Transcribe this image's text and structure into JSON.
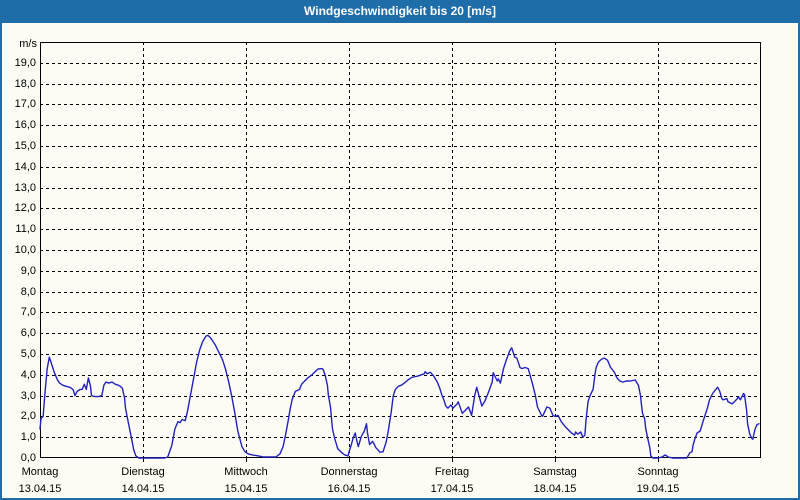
{
  "window": {
    "title": "Windgeschwindigkeit bis 20 [m/s]"
  },
  "colors": {
    "titlebar": "#1f6da8",
    "frame_border": "#1f6da8",
    "background": "#fcfcf4",
    "plot_border": "#000000",
    "grid": "#000000",
    "line": "#2121bd",
    "title_text": "#ffffff",
    "label_text": "#000000"
  },
  "chart_data": {
    "type": "line",
    "title": "Windgeschwindigkeit bis 20 [m/s]",
    "unit_label": "m/s",
    "ylim": [
      0,
      20
    ],
    "y_tick_step": 1,
    "y_tick_labels": [
      "0,0",
      "1,0",
      "2,0",
      "3,0",
      "4,0",
      "5,0",
      "6,0",
      "7,0",
      "8,0",
      "9,0",
      "10,0",
      "11,0",
      "12,0",
      "13,0",
      "14,0",
      "15,0",
      "16,0",
      "17,0",
      "18,0",
      "19,0"
    ],
    "grid": "dashed",
    "legend": "none",
    "x_axis_days": [
      {
        "name": "Montag",
        "date": "13.04.15"
      },
      {
        "name": "Dienstag",
        "date": "14.04.15"
      },
      {
        "name": "Mittwoch",
        "date": "15.04.15"
      },
      {
        "name": "Donnerstag",
        "date": "16.04.15"
      },
      {
        "name": "Freitag",
        "date": "17.04.15"
      },
      {
        "name": "Samstag",
        "date": "18.04.15"
      },
      {
        "name": "Sonntag",
        "date": "19.04.15"
      }
    ],
    "series": [
      {
        "name": "Windgeschwindigkeit",
        "color": "#2121bd",
        "x_unit": "days_since_monday_00h",
        "y_unit": "m/s",
        "points": [
          [
            0.0,
            1.4
          ],
          [
            0.01,
            1.9
          ],
          [
            0.03,
            2.0
          ],
          [
            0.05,
            3.2
          ],
          [
            0.07,
            4.3
          ],
          [
            0.09,
            4.85
          ],
          [
            0.12,
            4.4
          ],
          [
            0.14,
            4.1
          ],
          [
            0.17,
            3.75
          ],
          [
            0.19,
            3.6
          ],
          [
            0.22,
            3.5
          ],
          [
            0.25,
            3.45
          ],
          [
            0.29,
            3.4
          ],
          [
            0.32,
            3.3
          ],
          [
            0.34,
            3.0
          ],
          [
            0.36,
            3.2
          ],
          [
            0.39,
            3.3
          ],
          [
            0.41,
            3.3
          ],
          [
            0.43,
            3.55
          ],
          [
            0.45,
            3.3
          ],
          [
            0.47,
            3.85
          ],
          [
            0.49,
            3.45
          ],
          [
            0.5,
            3.0
          ],
          [
            0.53,
            2.95
          ],
          [
            0.57,
            2.95
          ],
          [
            0.6,
            3.0
          ],
          [
            0.62,
            3.5
          ],
          [
            0.64,
            3.65
          ],
          [
            0.67,
            3.6
          ],
          [
            0.7,
            3.65
          ],
          [
            0.73,
            3.55
          ],
          [
            0.76,
            3.5
          ],
          [
            0.78,
            3.45
          ],
          [
            0.8,
            3.35
          ],
          [
            0.82,
            2.9
          ],
          [
            0.83,
            2.4
          ],
          [
            0.85,
            1.9
          ],
          [
            0.87,
            1.4
          ],
          [
            0.89,
            0.9
          ],
          [
            0.91,
            0.4
          ],
          [
            0.93,
            0.1
          ],
          [
            0.96,
            0.0
          ],
          [
            1.0,
            0.0
          ],
          [
            1.12,
            0.0
          ],
          [
            1.21,
            0.0
          ],
          [
            1.24,
            0.05
          ],
          [
            1.28,
            0.6
          ],
          [
            1.31,
            1.4
          ],
          [
            1.34,
            1.75
          ],
          [
            1.36,
            1.7
          ],
          [
            1.38,
            1.85
          ],
          [
            1.41,
            1.8
          ],
          [
            1.43,
            2.2
          ],
          [
            1.46,
            3.0
          ],
          [
            1.49,
            3.8
          ],
          [
            1.52,
            4.6
          ],
          [
            1.55,
            5.2
          ],
          [
            1.58,
            5.6
          ],
          [
            1.61,
            5.85
          ],
          [
            1.63,
            5.9
          ],
          [
            1.66,
            5.75
          ],
          [
            1.68,
            5.6
          ],
          [
            1.7,
            5.45
          ],
          [
            1.73,
            5.15
          ],
          [
            1.77,
            4.75
          ],
          [
            1.8,
            4.3
          ],
          [
            1.83,
            3.7
          ],
          [
            1.86,
            3.0
          ],
          [
            1.89,
            2.2
          ],
          [
            1.92,
            1.3
          ],
          [
            1.96,
            0.55
          ],
          [
            1.99,
            0.3
          ],
          [
            2.02,
            0.2
          ],
          [
            2.06,
            0.15
          ],
          [
            2.12,
            0.1
          ],
          [
            2.17,
            0.05
          ],
          [
            2.23,
            0.05
          ],
          [
            2.29,
            0.05
          ],
          [
            2.33,
            0.2
          ],
          [
            2.36,
            0.55
          ],
          [
            2.38,
            1.0
          ],
          [
            2.41,
            1.8
          ],
          [
            2.43,
            2.4
          ],
          [
            2.45,
            2.85
          ],
          [
            2.48,
            3.2
          ],
          [
            2.5,
            3.25
          ],
          [
            2.52,
            3.3
          ],
          [
            2.54,
            3.55
          ],
          [
            2.57,
            3.7
          ],
          [
            2.6,
            3.85
          ],
          [
            2.64,
            4.0
          ],
          [
            2.67,
            4.15
          ],
          [
            2.7,
            4.28
          ],
          [
            2.74,
            4.3
          ],
          [
            2.75,
            4.25
          ],
          [
            2.77,
            3.95
          ],
          [
            2.79,
            3.5
          ],
          [
            2.8,
            3.0
          ],
          [
            2.82,
            2.45
          ],
          [
            2.83,
            1.9
          ],
          [
            2.84,
            1.4
          ],
          [
            2.86,
            0.95
          ],
          [
            2.89,
            0.45
          ],
          [
            2.93,
            0.25
          ],
          [
            2.96,
            0.15
          ],
          [
            2.99,
            0.1
          ],
          [
            3.0,
            0.3
          ],
          [
            3.02,
            0.6
          ],
          [
            3.04,
            0.95
          ],
          [
            3.06,
            1.2
          ],
          [
            3.08,
            0.75
          ],
          [
            3.09,
            0.55
          ],
          [
            3.12,
            1.05
          ],
          [
            3.15,
            1.3
          ],
          [
            3.17,
            1.65
          ],
          [
            3.18,
            1.2
          ],
          [
            3.2,
            0.65
          ],
          [
            3.23,
            0.8
          ],
          [
            3.26,
            0.5
          ],
          [
            3.28,
            0.4
          ],
          [
            3.3,
            0.28
          ],
          [
            3.33,
            0.3
          ],
          [
            3.36,
            0.75
          ],
          [
            3.38,
            1.25
          ],
          [
            3.41,
            2.2
          ],
          [
            3.43,
            3.0
          ],
          [
            3.45,
            3.3
          ],
          [
            3.47,
            3.4
          ],
          [
            3.48,
            3.45
          ],
          [
            3.51,
            3.5
          ],
          [
            3.55,
            3.65
          ],
          [
            3.58,
            3.78
          ],
          [
            3.61,
            3.88
          ],
          [
            3.65,
            3.92
          ],
          [
            3.68,
            3.95
          ],
          [
            3.7,
            4.0
          ],
          [
            3.73,
            4.05
          ],
          [
            3.74,
            4.15
          ],
          [
            3.76,
            4.05
          ],
          [
            3.79,
            4.12
          ],
          [
            3.82,
            3.95
          ],
          [
            3.84,
            3.8
          ],
          [
            3.86,
            3.62
          ],
          [
            3.88,
            3.38
          ],
          [
            3.9,
            3.05
          ],
          [
            3.92,
            2.8
          ],
          [
            3.94,
            2.5
          ],
          [
            3.96,
            2.4
          ],
          [
            3.99,
            2.55
          ],
          [
            4.01,
            2.4
          ],
          [
            4.05,
            2.6
          ],
          [
            4.06,
            2.7
          ],
          [
            4.1,
            2.15
          ],
          [
            4.13,
            2.3
          ],
          [
            4.16,
            2.45
          ],
          [
            4.19,
            2.05
          ],
          [
            4.22,
            3.0
          ],
          [
            4.24,
            3.4
          ],
          [
            4.27,
            2.85
          ],
          [
            4.29,
            2.5
          ],
          [
            4.32,
            2.75
          ],
          [
            4.35,
            3.1
          ],
          [
            4.39,
            3.65
          ],
          [
            4.4,
            4.1
          ],
          [
            4.44,
            3.7
          ],
          [
            4.45,
            3.8
          ],
          [
            4.47,
            3.6
          ],
          [
            4.5,
            4.3
          ],
          [
            4.53,
            4.75
          ],
          [
            4.56,
            5.15
          ],
          [
            4.58,
            5.3
          ],
          [
            4.61,
            4.85
          ],
          [
            4.63,
            4.8
          ],
          [
            4.66,
            4.35
          ],
          [
            4.68,
            4.3
          ],
          [
            4.71,
            4.35
          ],
          [
            4.74,
            4.3
          ],
          [
            4.78,
            3.6
          ],
          [
            4.81,
            3.0
          ],
          [
            4.83,
            2.45
          ],
          [
            4.87,
            2.05
          ],
          [
            4.88,
            2.0
          ],
          [
            4.92,
            2.45
          ],
          [
            4.95,
            2.4
          ],
          [
            4.98,
            2.05
          ],
          [
            5.0,
            2.0
          ],
          [
            5.03,
            2.05
          ],
          [
            5.06,
            1.75
          ],
          [
            5.1,
            1.5
          ],
          [
            5.13,
            1.35
          ],
          [
            5.16,
            1.2
          ],
          [
            5.19,
            1.1
          ],
          [
            5.2,
            1.25
          ],
          [
            5.22,
            1.15
          ],
          [
            5.25,
            1.25
          ],
          [
            5.27,
            1.0
          ],
          [
            5.29,
            1.1
          ],
          [
            5.3,
            1.75
          ],
          [
            5.32,
            2.7
          ],
          [
            5.34,
            3.0
          ],
          [
            5.35,
            3.1
          ],
          [
            5.37,
            3.3
          ],
          [
            5.39,
            4.1
          ],
          [
            5.4,
            4.35
          ],
          [
            5.42,
            4.6
          ],
          [
            5.44,
            4.7
          ],
          [
            5.47,
            4.8
          ],
          [
            5.48,
            4.8
          ],
          [
            5.51,
            4.7
          ],
          [
            5.54,
            4.35
          ],
          [
            5.58,
            4.1
          ],
          [
            5.59,
            3.95
          ],
          [
            5.61,
            3.8
          ],
          [
            5.63,
            3.7
          ],
          [
            5.66,
            3.65
          ],
          [
            5.69,
            3.7
          ],
          [
            5.73,
            3.7
          ],
          [
            5.78,
            3.75
          ],
          [
            5.79,
            3.65
          ],
          [
            5.81,
            3.5
          ],
          [
            5.83,
            3.0
          ],
          [
            5.84,
            2.55
          ],
          [
            5.85,
            2.15
          ],
          [
            5.87,
            1.9
          ],
          [
            5.88,
            1.45
          ],
          [
            5.9,
            0.95
          ],
          [
            5.92,
            0.5
          ],
          [
            5.93,
            0.1
          ],
          [
            5.95,
            0.0
          ],
          [
            6.0,
            0.0
          ],
          [
            6.04,
            0.05
          ],
          [
            6.07,
            0.15
          ],
          [
            6.1,
            0.05
          ],
          [
            6.14,
            0.0
          ],
          [
            6.28,
            0.0
          ],
          [
            6.31,
            0.25
          ],
          [
            6.33,
            0.3
          ],
          [
            6.34,
            0.6
          ],
          [
            6.36,
            0.95
          ],
          [
            6.38,
            1.2
          ],
          [
            6.41,
            1.3
          ],
          [
            6.44,
            1.8
          ],
          [
            6.48,
            2.4
          ],
          [
            6.5,
            2.8
          ],
          [
            6.53,
            3.1
          ],
          [
            6.57,
            3.35
          ],
          [
            6.58,
            3.4
          ],
          [
            6.6,
            3.2
          ],
          [
            6.62,
            2.85
          ],
          [
            6.63,
            2.8
          ],
          [
            6.67,
            2.85
          ],
          [
            6.68,
            2.7
          ],
          [
            6.72,
            2.6
          ],
          [
            6.73,
            2.65
          ],
          [
            6.77,
            2.85
          ],
          [
            6.78,
            2.95
          ],
          [
            6.8,
            2.8
          ],
          [
            6.83,
            3.1
          ],
          [
            6.84,
            3.05
          ],
          [
            6.86,
            2.3
          ],
          [
            6.87,
            1.65
          ],
          [
            6.89,
            1.15
          ],
          [
            6.91,
            0.95
          ],
          [
            6.92,
            0.9
          ],
          [
            6.94,
            1.35
          ],
          [
            6.96,
            1.6
          ],
          [
            6.98,
            1.65
          ]
        ]
      }
    ]
  }
}
